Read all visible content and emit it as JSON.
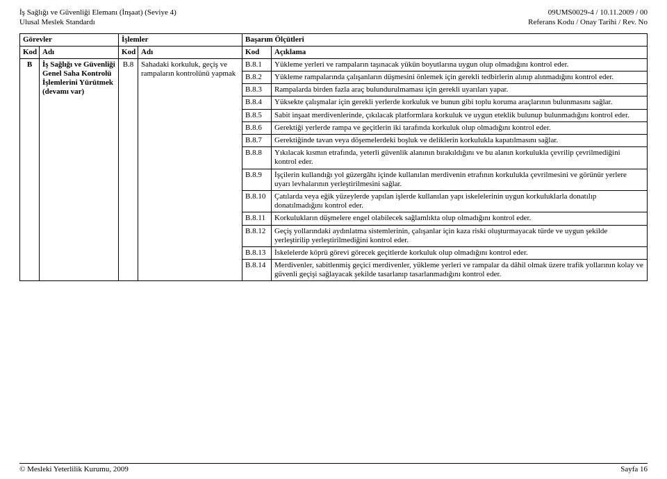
{
  "header": {
    "top_left_1": "İş Sağlığı ve Güvenliği Elemanı (İnşaat) (Seviye 4)",
    "top_left_2": "Ulusal Meslek Standardı",
    "top_right_1": "09UMS0029-4 / 10.11.2009  / 00",
    "top_right_2": "Referans Kodu / Onay Tarihi / Rev. No"
  },
  "table": {
    "group_headers": {
      "gorevler": "Görevler",
      "islemler": "İşlemler",
      "basarim": "Başarım Ölçütleri"
    },
    "sub_headers": {
      "kod": "Kod",
      "adi": "Adı",
      "aciklama": "Açıklama"
    },
    "gorev": {
      "kod": "B",
      "adi": "İş Sağlığı ve Güvenliği Genel Saha Kontrolü İşlemlerini Yürütmek (devamı var)"
    },
    "islem": {
      "kod": "B.8",
      "adi": "Sahadaki korkuluk, geçiş ve rampaların kontrolünü yapmak"
    },
    "rows": [
      {
        "kod": "B.8.1",
        "txt": "Yükleme yerleri ve rampaların taşınacak yükün boyutlarına uygun olup olmadığını kontrol eder."
      },
      {
        "kod": "B.8.2",
        "txt": "Yükleme rampalarında çalışanların düşmesini önlemek için gerekli tedbirlerin alınıp alınmadığını kontrol eder."
      },
      {
        "kod": "B.8.3",
        "txt": "Rampalarda birden fazla araç bulundurulmaması için gerekli uyarıları yapar."
      },
      {
        "kod": "B.8.4",
        "txt": "Yüksekte çalışmalar için gerekli yerlerde korkuluk ve bunun gibi toplu koruma araçlarının bulunmasını sağlar."
      },
      {
        "kod": "B.8.5",
        "txt": "Sabit inşaat merdivenlerinde, çıkılacak platformlara korkuluk ve uygun eteklik bulunup bulunmadığını kontrol eder."
      },
      {
        "kod": "B.8.6",
        "txt": "Gerektiği yerlerde rampa ve geçitlerin iki tarafında korkuluk olup olmadığını kontrol eder."
      },
      {
        "kod": "B.8.7",
        "txt": "Gerektiğinde tavan veya döşemelerdeki boşluk ve deliklerin korkulukla kapatılmasını sağlar."
      },
      {
        "kod": "B.8.8",
        "txt": "Yıkılacak kısmın etrafında, yeterli güvenlik alanının bırakıldığını ve bu alanın korkulukla çevrilip çevrilmediğini kontrol eder."
      },
      {
        "kod": "B.8.9",
        "txt": "İşçilerin kullandığı yol güzergâhı içinde kullanılan merdivenin etrafının korkulukla çevrilmesini ve görünür yerlere uyarı levhalarının yerleştirilmesini sağlar."
      },
      {
        "kod": "B.8.10",
        "txt": "Çatılarda veya eğik yüzeylerde yapılan işlerde kullanılan yapı iskelelerinin uygun korkuluklarla donatılıp donatılmadığını kontrol eder."
      },
      {
        "kod": "B.8.11",
        "txt": "Korkulukların düşmelere engel olabilecek sağlamlıkta olup olmadığını kontrol eder."
      },
      {
        "kod": "B.8.12",
        "txt": "Geçiş yollarındaki aydınlatma sistemlerinin, çalışanlar için kaza riski oluşturmayacak türde ve uygun şekilde yerleştirilip yerleştirilmediğini kontrol eder."
      },
      {
        "kod": "B.8.13",
        "txt": "İskelelerde köprü görevi görecek geçitlerde korkuluk olup olmadığını kontrol eder."
      },
      {
        "kod": "B.8.14",
        "txt": "Merdivenler, sabitlenmiş geçici merdivenler, yükleme yerleri ve rampalar da dâhil olmak üzere trafik yollarının kolay ve güvenli geçişi sağlayacak şekilde tasarlanıp tasarlanmadığını kontrol eder."
      }
    ]
  },
  "footer": {
    "left": "© Mesleki Yeterlilik Kurumu, 2009",
    "right": "Sayfa 16"
  }
}
